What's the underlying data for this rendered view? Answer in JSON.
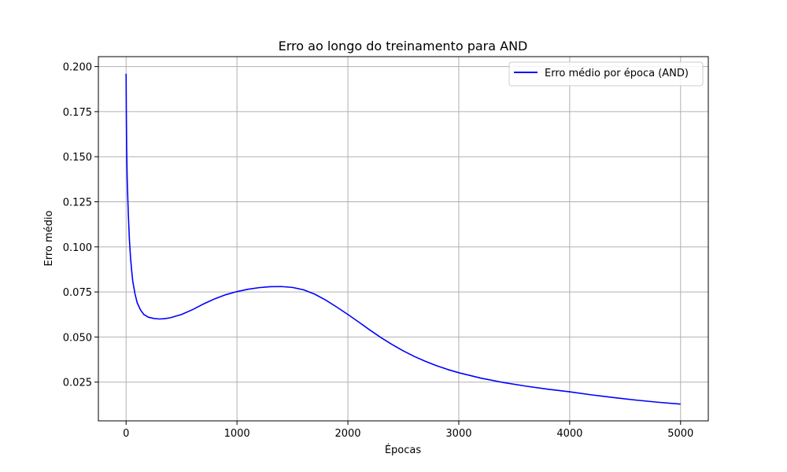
{
  "chart_data": {
    "type": "line",
    "title": "Erro ao longo do treinamento para AND",
    "xlabel": "Épocas",
    "ylabel": "Erro médio",
    "xlim": [
      -250,
      5250
    ],
    "ylim": [
      0.0035,
      0.2055
    ],
    "xticks": [
      0,
      1000,
      2000,
      3000,
      4000,
      5000
    ],
    "xtick_labels": [
      "0",
      "1000",
      "2000",
      "3000",
      "4000",
      "5000"
    ],
    "yticks": [
      0.025,
      0.05,
      0.075,
      0.1,
      0.125,
      0.15,
      0.175,
      0.2
    ],
    "ytick_labels": [
      "0.025",
      "0.050",
      "0.075",
      "0.100",
      "0.125",
      "0.150",
      "0.175",
      "0.200"
    ],
    "grid": true,
    "legend_position": "top-right",
    "series": [
      {
        "name": "Erro médio por época (AND)",
        "color": "#0000ff",
        "x": [
          0,
          2,
          5,
          10,
          20,
          30,
          40,
          50,
          60,
          80,
          100,
          130,
          160,
          200,
          250,
          300,
          350,
          400,
          500,
          600,
          700,
          800,
          900,
          1000,
          1100,
          1200,
          1300,
          1400,
          1500,
          1600,
          1700,
          1800,
          1900,
          2000,
          2100,
          2200,
          2300,
          2400,
          2500,
          2600,
          2700,
          2800,
          2900,
          3000,
          3200,
          3400,
          3600,
          3800,
          4000,
          4200,
          4400,
          4600,
          4800,
          5000
        ],
        "y": [
          0.196,
          0.175,
          0.155,
          0.137,
          0.118,
          0.104,
          0.094,
          0.087,
          0.081,
          0.074,
          0.069,
          0.065,
          0.0625,
          0.061,
          0.0603,
          0.06,
          0.0602,
          0.0607,
          0.0625,
          0.0652,
          0.0684,
          0.0712,
          0.0735,
          0.0752,
          0.0765,
          0.0774,
          0.0779,
          0.078,
          0.0775,
          0.0762,
          0.0738,
          0.0705,
          0.0666,
          0.0625,
          0.0582,
          0.0538,
          0.0496,
          0.0458,
          0.0423,
          0.0392,
          0.0365,
          0.0341,
          0.032,
          0.0302,
          0.0272,
          0.0248,
          0.0228,
          0.0211,
          0.0196,
          0.0179,
          0.0164,
          0.015,
          0.0138,
          0.0128
        ]
      }
    ]
  }
}
